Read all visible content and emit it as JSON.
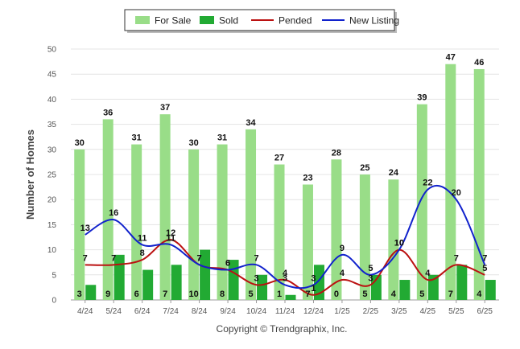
{
  "chart_data": {
    "type": "bar",
    "ylabel": "Number of Homes",
    "ylim": [
      0,
      50
    ],
    "yticks": [
      0,
      5,
      10,
      15,
      20,
      25,
      30,
      35,
      40,
      45,
      50
    ],
    "grid": true,
    "legend_position": "top-center",
    "categories": [
      "4/24",
      "5/24",
      "6/24",
      "7/24",
      "8/24",
      "9/24",
      "10/24",
      "11/24",
      "12/24",
      "1/25",
      "2/25",
      "3/25",
      "4/25",
      "5/25",
      "6/25"
    ],
    "series": [
      {
        "name": "For Sale",
        "kind": "bar",
        "color": "#99dd88",
        "values": [
          30,
          36,
          31,
          37,
          30,
          31,
          34,
          27,
          23,
          28,
          25,
          24,
          39,
          47,
          46
        ]
      },
      {
        "name": "Sold",
        "kind": "bar",
        "color": "#22aa33",
        "values": [
          3,
          9,
          6,
          7,
          10,
          8,
          5,
          1,
          7,
          0,
          5,
          4,
          5,
          7,
          4
        ]
      },
      {
        "name": "Pended",
        "kind": "line",
        "color": "#bb1111",
        "values": [
          7,
          7,
          8,
          12,
          7,
          6,
          3,
          4,
          1,
          4,
          3,
          10,
          4,
          7,
          5
        ]
      },
      {
        "name": "New Listing",
        "kind": "line",
        "color": "#1122cc",
        "values": [
          13,
          16,
          11,
          11,
          7,
          6,
          7,
          3,
          3,
          9,
          5,
          10,
          22,
          20,
          7
        ]
      }
    ],
    "credit": "Copyright © Trendgraphix, Inc."
  }
}
